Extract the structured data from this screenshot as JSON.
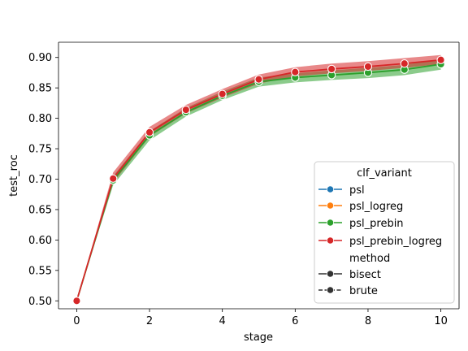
{
  "chart_data": {
    "type": "line",
    "title": "",
    "xlabel": "stage",
    "ylabel": "test_roc",
    "xlim": [
      -0.5,
      10.5
    ],
    "ylim": [
      0.487,
      0.925
    ],
    "xticks": [
      0,
      2,
      4,
      6,
      8,
      10
    ],
    "xtick_labels": [
      "0",
      "2",
      "4",
      "6",
      "8",
      "10"
    ],
    "yticks": [
      0.5,
      0.55,
      0.6,
      0.65,
      0.7,
      0.75,
      0.8,
      0.85,
      0.9
    ],
    "ytick_labels": [
      "0.50",
      "0.55",
      "0.60",
      "0.65",
      "0.70",
      "0.75",
      "0.80",
      "0.85",
      "0.90"
    ],
    "grid": false,
    "x": [
      0,
      1,
      2,
      3,
      4,
      5,
      6,
      7,
      8,
      9,
      10
    ],
    "series": [
      {
        "name": "psl_prebin",
        "color": "#2ca02c",
        "values": [
          0.5,
          0.698,
          0.772,
          0.81,
          0.837,
          0.86,
          0.867,
          0.871,
          0.875,
          0.88,
          0.889
        ],
        "lower": [
          0.5,
          0.69,
          0.764,
          0.803,
          0.83,
          0.852,
          0.859,
          0.863,
          0.866,
          0.871,
          0.88
        ],
        "upper": [
          0.5,
          0.705,
          0.779,
          0.817,
          0.844,
          0.867,
          0.874,
          0.879,
          0.883,
          0.888,
          0.897
        ]
      },
      {
        "name": "psl_prebin_logreg",
        "color": "#d62728",
        "values": [
          0.5,
          0.701,
          0.777,
          0.814,
          0.84,
          0.864,
          0.876,
          0.881,
          0.885,
          0.89,
          0.896
        ],
        "lower": [
          0.5,
          0.694,
          0.77,
          0.808,
          0.834,
          0.857,
          0.869,
          0.874,
          0.878,
          0.883,
          0.889
        ],
        "upper": [
          0.5,
          0.711,
          0.786,
          0.822,
          0.848,
          0.872,
          0.884,
          0.89,
          0.894,
          0.899,
          0.904
        ]
      }
    ],
    "legend": {
      "placement": "lower-right",
      "hue_title": "clf_variant",
      "hue_entries": [
        {
          "label": "psl",
          "color": "#1f77b4"
        },
        {
          "label": "psl_logreg",
          "color": "#ff7f0e"
        },
        {
          "label": "psl_prebin",
          "color": "#2ca02c"
        },
        {
          "label": "psl_prebin_logreg",
          "color": "#d62728"
        }
      ],
      "style_title": "method",
      "style_entries": [
        {
          "label": "bisect",
          "dash": "solid"
        },
        {
          "label": "brute",
          "dash": "dashed"
        }
      ]
    }
  }
}
